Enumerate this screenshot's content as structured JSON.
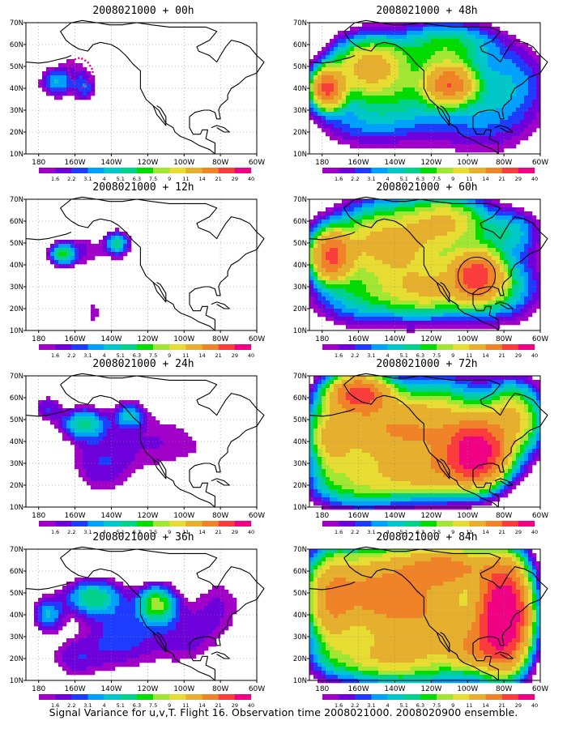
{
  "caption": "Signal Variance for u,v,T. Flight 16. Observation time 2008021000. 2008020900 ensemble.",
  "colors": {
    "scale": [
      "#a000c8",
      "#6e00dc",
      "#1e3cff",
      "#00a0ff",
      "#00c8c8",
      "#00d28c",
      "#00dc00",
      "#a0e632",
      "#e6dc32",
      "#e6af2d",
      "#f08228",
      "#fa3c3c",
      "#f00082"
    ],
    "coast": "#000000",
    "grid": "#888888",
    "track": "#e6008c"
  },
  "chart_data": [
    {
      "type": "heatmap",
      "title": "2008021000 + 00h",
      "x_ticks": [
        "180",
        "160W",
        "140W",
        "120W",
        "100W",
        "80W",
        "60W"
      ],
      "y_ticks": [
        "10N",
        "20N",
        "30N",
        "40N",
        "50N",
        "60N",
        "70N"
      ],
      "colorbar_labels": [
        "1.6",
        "2.2",
        "3.1",
        "4",
        "5.1",
        "6.3",
        "7.5",
        "9",
        "11",
        "14",
        "21",
        "29",
        "40"
      ],
      "xlim": [
        -187,
        -60
      ],
      "ylim": [
        10,
        70
      ],
      "annotation": "flight track (dotted)",
      "blobs": [
        [
          -170,
          43,
          9,
          6,
          5.0
        ],
        [
          -155,
          41,
          6,
          7,
          3.5
        ],
        [
          -162,
          52,
          8,
          6,
          1.5
        ],
        [
          -140,
          36,
          14,
          12,
          0.8
        ],
        [
          -115,
          28,
          10,
          8,
          0.7
        ],
        [
          -170,
          32,
          10,
          8,
          0.6
        ]
      ]
    },
    {
      "type": "heatmap",
      "title": "2008021000 + 12h",
      "x_ticks": [
        "180",
        "160W",
        "140W",
        "120W",
        "100W",
        "80W",
        "60W"
      ],
      "y_ticks": [
        "10N",
        "20N",
        "30N",
        "40N",
        "50N",
        "60N",
        "70N"
      ],
      "colorbar_labels": [
        "1.6",
        "2.2",
        "3.1",
        "4",
        "5.1",
        "6.3",
        "7.5",
        "9",
        "11",
        "14",
        "21",
        "29",
        "40"
      ],
      "xlim": [
        -187,
        -60
      ],
      "ylim": [
        10,
        70
      ],
      "blobs": [
        [
          -167,
          45,
          7,
          5,
          7.5
        ],
        [
          -137,
          50,
          6,
          5,
          6.5
        ],
        [
          -155,
          47,
          12,
          8,
          2.0
        ],
        [
          -150,
          18,
          5,
          7,
          2.0
        ],
        [
          -120,
          40,
          25,
          12,
          1.2
        ],
        [
          -80,
          40,
          15,
          15,
          0.8
        ],
        [
          -165,
          30,
          10,
          8,
          0.8
        ]
      ]
    },
    {
      "type": "heatmap",
      "title": "2008021000 + 24h",
      "x_ticks": [
        "180",
        "160W",
        "140W",
        "120W",
        "100W",
        "80W",
        "60W"
      ],
      "y_ticks": [
        "10N",
        "20N",
        "30N",
        "40N",
        "50N",
        "60N",
        "70N"
      ],
      "colorbar_labels": [
        "1.6",
        "2.2",
        "3.1",
        "4",
        "5.1",
        "6.3",
        "7.5",
        "9",
        "11",
        "14",
        "21",
        "29",
        "40"
      ],
      "xlim": [
        -187,
        -60
      ],
      "ylim": [
        10,
        70
      ],
      "blobs": [
        [
          -155,
          48,
          12,
          7,
          6.5
        ],
        [
          -130,
          52,
          8,
          6,
          5.0
        ],
        [
          -175,
          55,
          8,
          6,
          3.0
        ],
        [
          -145,
          30,
          18,
          15,
          3.0
        ],
        [
          -115,
          40,
          20,
          15,
          2.0
        ],
        [
          -85,
          35,
          20,
          20,
          1.2
        ]
      ]
    },
    {
      "type": "heatmap",
      "title": "2008021000 + 36h",
      "x_ticks": [
        "180",
        "160W",
        "140W",
        "120W",
        "100W",
        "80W",
        "60W"
      ],
      "y_ticks": [
        "10N",
        "20N",
        "30N",
        "40N",
        "50N",
        "60N",
        "70N"
      ],
      "colorbar_labels": [
        "1.6",
        "2.2",
        "3.1",
        "4",
        "5.1",
        "6.3",
        "7.5",
        "9",
        "11",
        "14",
        "21",
        "29",
        "40"
      ],
      "xlim": [
        -187,
        -60
      ],
      "ylim": [
        10,
        70
      ],
      "blobs": [
        [
          -150,
          48,
          15,
          8,
          7.0
        ],
        [
          -115,
          45,
          10,
          8,
          9.0
        ],
        [
          -175,
          40,
          8,
          8,
          5.0
        ],
        [
          -135,
          30,
          20,
          15,
          3.5
        ],
        [
          -100,
          30,
          20,
          15,
          2.5
        ],
        [
          -80,
          45,
          15,
          15,
          2.0
        ],
        [
          -160,
          20,
          15,
          10,
          2.5
        ]
      ]
    },
    {
      "type": "heatmap",
      "title": "2008021000 + 48h",
      "x_ticks": [
        "180",
        "160W",
        "140W",
        "120W",
        "100W",
        "80W",
        "60W"
      ],
      "y_ticks": [
        "10N",
        "20N",
        "30N",
        "40N",
        "50N",
        "60N",
        "70N"
      ],
      "colorbar_labels": [
        "1.6",
        "2.2",
        "3.1",
        "4",
        "5.1",
        "6.3",
        "7.5",
        "9",
        "11",
        "14",
        "21",
        "29",
        "40"
      ],
      "xlim": [
        -187,
        -60
      ],
      "ylim": [
        10,
        70
      ],
      "blobs": [
        [
          -177,
          40,
          8,
          8,
          30.0
        ],
        [
          -155,
          50,
          18,
          12,
          14.0
        ],
        [
          -110,
          42,
          12,
          8,
          24.0
        ],
        [
          -135,
          40,
          30,
          20,
          6.0
        ],
        [
          -90,
          30,
          30,
          20,
          4.0
        ],
        [
          -160,
          25,
          25,
          12,
          3.0
        ],
        [
          -110,
          60,
          25,
          10,
          7.0
        ],
        [
          -75,
          45,
          20,
          15,
          3.0
        ]
      ]
    },
    {
      "type": "heatmap",
      "title": "2008021000 + 60h",
      "x_ticks": [
        "180",
        "160W",
        "140W",
        "120W",
        "100W",
        "80W",
        "60W"
      ],
      "y_ticks": [
        "10N",
        "20N",
        "30N",
        "40N",
        "50N",
        "60N",
        "70N"
      ],
      "colorbar_labels": [
        "1.6",
        "2.2",
        "3.1",
        "4",
        "5.1",
        "6.3",
        "7.5",
        "9",
        "11",
        "14",
        "21",
        "29",
        "40"
      ],
      "xlim": [
        -187,
        -60
      ],
      "ylim": [
        10,
        70
      ],
      "annotation": "circle",
      "blobs": [
        [
          -175,
          44,
          10,
          10,
          28.0
        ],
        [
          -95,
          35,
          12,
          10,
          30.0
        ],
        [
          -150,
          50,
          25,
          15,
          12.0
        ],
        [
          -125,
          45,
          30,
          25,
          8.0
        ],
        [
          -120,
          28,
          25,
          10,
          9.0
        ],
        [
          -80,
          30,
          20,
          15,
          6.0
        ],
        [
          -160,
          25,
          25,
          12,
          5.0
        ],
        [
          -75,
          55,
          15,
          10,
          5.0
        ],
        [
          -110,
          60,
          20,
          10,
          10.0
        ]
      ]
    },
    {
      "type": "heatmap",
      "title": "2008021000 + 72h",
      "x_ticks": [
        "180",
        "160W",
        "140W",
        "120W",
        "100W",
        "80W",
        "60W"
      ],
      "y_ticks": [
        "10N",
        "20N",
        "30N",
        "40N",
        "50N",
        "60N",
        "70N"
      ],
      "colorbar_labels": [
        "1.6",
        "2.2",
        "3.1",
        "4",
        "5.1",
        "6.3",
        "7.5",
        "9",
        "11",
        "14",
        "21",
        "29",
        "40"
      ],
      "xlim": [
        -187,
        -60
      ],
      "ylim": [
        10,
        70
      ],
      "blobs": [
        [
          -95,
          35,
          14,
          12,
          45.0
        ],
        [
          -160,
          62,
          15,
          8,
          30.0
        ],
        [
          -150,
          45,
          30,
          15,
          18.0
        ],
        [
          -115,
          45,
          25,
          20,
          14.0
        ],
        [
          -175,
          40,
          10,
          15,
          10.0
        ],
        [
          -120,
          25,
          30,
          10,
          12.0
        ],
        [
          -75,
          50,
          15,
          15,
          14.0
        ],
        [
          -160,
          20,
          25,
          10,
          8.0
        ]
      ]
    },
    {
      "type": "heatmap",
      "title": "2008021000 + 84h",
      "x_ticks": [
        "180",
        "160W",
        "140W",
        "120W",
        "100W",
        "80W",
        "60W"
      ],
      "y_ticks": [
        "10N",
        "20N",
        "30N",
        "40N",
        "50N",
        "60N",
        "70N"
      ],
      "colorbar_labels": [
        "1.6",
        "2.2",
        "3.1",
        "4",
        "5.1",
        "6.3",
        "7.5",
        "9",
        "11",
        "14",
        "21",
        "29",
        "40"
      ],
      "xlim": [
        -187,
        -60
      ],
      "ylim": [
        10,
        70
      ],
      "blobs": [
        [
          -80,
          40,
          12,
          20,
          60.0
        ],
        [
          -155,
          50,
          30,
          18,
          20.0
        ],
        [
          -120,
          40,
          30,
          25,
          16.0
        ],
        [
          -175,
          45,
          10,
          20,
          12.0
        ],
        [
          -110,
          62,
          25,
          8,
          18.0
        ],
        [
          -150,
          20,
          30,
          10,
          10.0
        ],
        [
          -95,
          25,
          15,
          10,
          14.0
        ]
      ]
    }
  ]
}
